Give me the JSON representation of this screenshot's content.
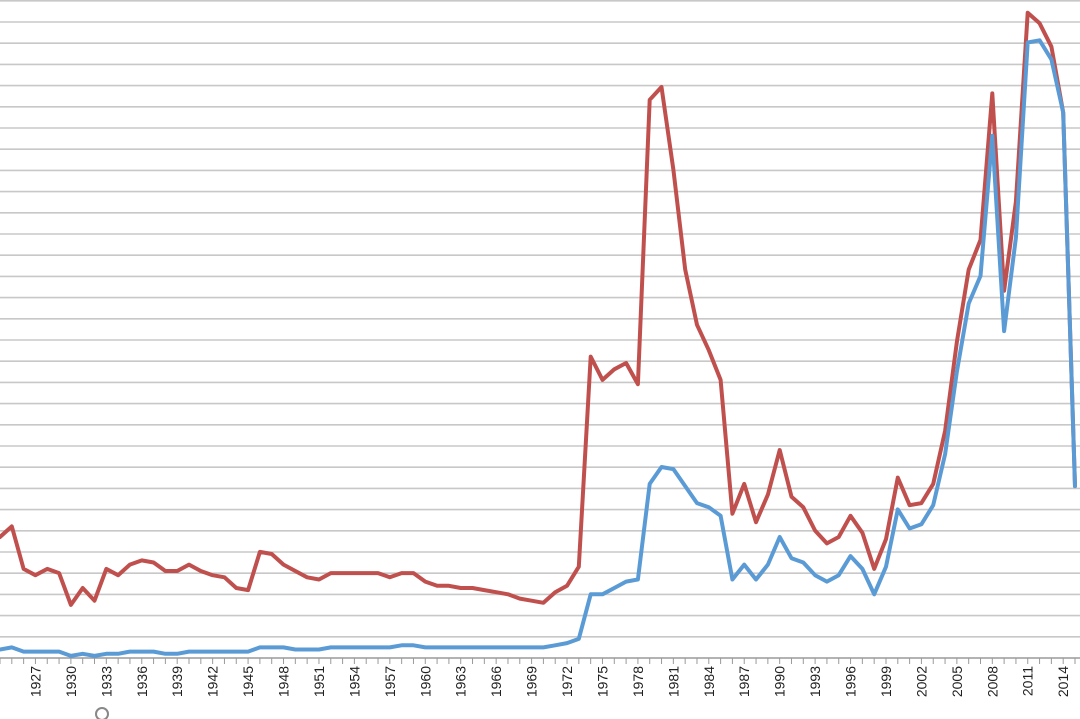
{
  "chart_data": {
    "type": "line",
    "title": "",
    "xlabel": "",
    "ylabel": "",
    "grid": true,
    "legend": "none",
    "x_tick_labels": [
      "1927",
      "1930",
      "1933",
      "1936",
      "1939",
      "1942",
      "1945",
      "1948",
      "1951",
      "1954",
      "1957",
      "1960",
      "1963",
      "1966",
      "1969",
      "1972",
      "1975",
      "1978",
      "1981",
      "1984",
      "1987",
      "1990",
      "1993",
      "1996",
      "1999",
      "2002",
      "2005",
      "2008",
      "2011",
      "2014"
    ],
    "x": [
      1924,
      1925,
      1926,
      1927,
      1928,
      1929,
      1930,
      1931,
      1932,
      1933,
      1934,
      1935,
      1936,
      1937,
      1938,
      1939,
      1940,
      1941,
      1942,
      1943,
      1944,
      1945,
      1946,
      1947,
      1948,
      1949,
      1950,
      1951,
      1952,
      1953,
      1954,
      1955,
      1956,
      1957,
      1958,
      1959,
      1960,
      1961,
      1962,
      1963,
      1964,
      1965,
      1966,
      1967,
      1968,
      1969,
      1970,
      1971,
      1972,
      1973,
      1974,
      1975,
      1976,
      1977,
      1978,
      1979,
      1980,
      1981,
      1982,
      1983,
      1984,
      1985,
      1986,
      1987,
      1988,
      1989,
      1990,
      1991,
      1992,
      1993,
      1994,
      1995,
      1996,
      1997,
      1998,
      1999,
      2000,
      2001,
      2002,
      2003,
      2004,
      2005,
      2006,
      2007,
      2008,
      2009,
      2010,
      2011,
      2012,
      2013,
      2014,
      2015
    ],
    "ylim": [
      0,
      31
    ],
    "series": [
      {
        "color": "#c0504d",
        "values": [
          5.7,
          6.2,
          4.2,
          3.9,
          4.2,
          4.0,
          2.5,
          3.3,
          2.7,
          4.2,
          3.9,
          4.4,
          4.6,
          4.5,
          4.1,
          4.1,
          4.4,
          4.1,
          3.9,
          3.8,
          3.3,
          3.2,
          5.0,
          4.9,
          4.4,
          4.1,
          3.8,
          3.7,
          4.0,
          4.0,
          4.0,
          4.0,
          4.0,
          3.8,
          4.0,
          4.0,
          3.6,
          3.4,
          3.4,
          3.3,
          3.3,
          3.2,
          3.1,
          3.0,
          2.8,
          2.7,
          2.6,
          3.1,
          3.4,
          4.3,
          14.2,
          13.1,
          13.6,
          13.9,
          12.9,
          26.3,
          26.9,
          23.0,
          18.3,
          15.7,
          14.5,
          13.1,
          6.8,
          8.2,
          6.4,
          7.7,
          9.8,
          7.6,
          7.1,
          6.0,
          5.4,
          5.7,
          6.7,
          5.9,
          4.2,
          5.6,
          8.5,
          7.2,
          7.3,
          8.2,
          10.7,
          14.9,
          18.3,
          19.7,
          26.6,
          17.3,
          21.5,
          30.4,
          29.9,
          28.8,
          25.7,
          8.1
        ]
      },
      {
        "color": "#5b9bd5",
        "values": [
          0.4,
          0.5,
          0.3,
          0.3,
          0.3,
          0.3,
          0.1,
          0.2,
          0.1,
          0.2,
          0.2,
          0.3,
          0.3,
          0.3,
          0.2,
          0.2,
          0.3,
          0.3,
          0.3,
          0.3,
          0.3,
          0.3,
          0.5,
          0.5,
          0.5,
          0.4,
          0.4,
          0.4,
          0.5,
          0.5,
          0.5,
          0.5,
          0.5,
          0.5,
          0.6,
          0.6,
          0.5,
          0.5,
          0.5,
          0.5,
          0.5,
          0.5,
          0.5,
          0.5,
          0.5,
          0.5,
          0.5,
          0.6,
          0.7,
          0.9,
          3.0,
          3.0,
          3.3,
          3.6,
          3.7,
          8.2,
          9.0,
          8.9,
          8.1,
          7.3,
          7.1,
          6.7,
          3.7,
          4.4,
          3.7,
          4.4,
          5.7,
          4.7,
          4.5,
          3.9,
          3.6,
          3.9,
          4.8,
          4.2,
          3.0,
          4.3,
          7.0,
          6.1,
          6.3,
          7.2,
          9.6,
          13.5,
          16.7,
          18.0,
          24.6,
          15.4,
          19.8,
          29.0,
          29.1,
          28.2,
          25.7,
          8.1
        ]
      }
    ]
  }
}
